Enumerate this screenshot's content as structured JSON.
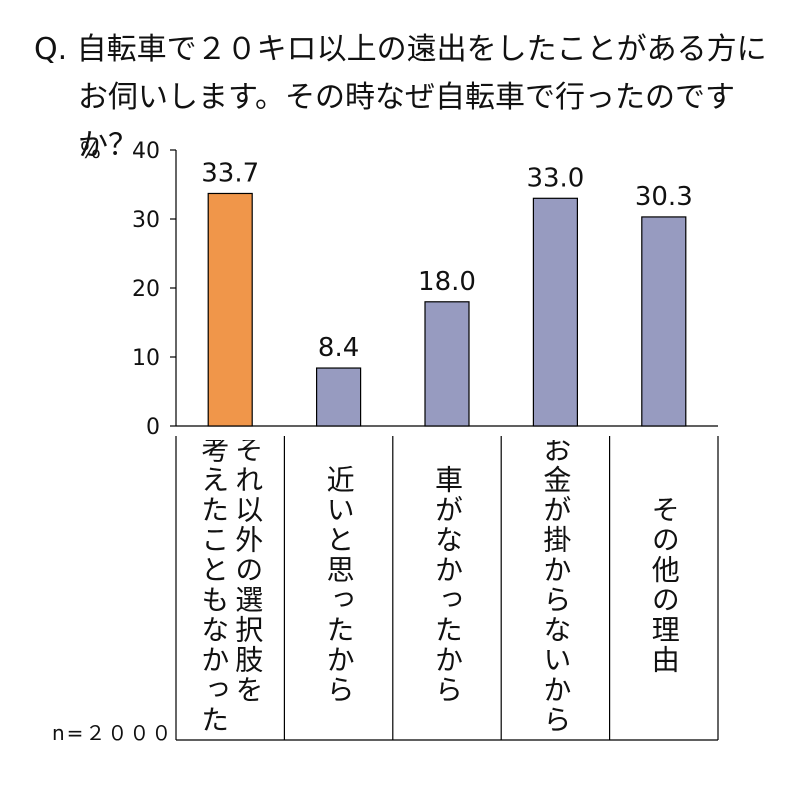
{
  "question": {
    "line1": "Q. 自転車で２０キロ以上の遠出をしたことがある方に",
    "line2": "お伺いします。その時なぜ自転車で行ったのですか？"
  },
  "sample_size": "n=２０００",
  "chart_data": {
    "type": "bar",
    "categories": [
      [
        "それ以外の選択肢を",
        "考えたこともなかった"
      ],
      [
        "近いと思ったから"
      ],
      [
        "車がなかったから"
      ],
      [
        "お金が掛からないから"
      ],
      [
        "その他の理由"
      ]
    ],
    "values": [
      33.7,
      8.4,
      18.0,
      33.0,
      30.3
    ],
    "value_labels": [
      "33.7",
      "8.4",
      "18.0",
      "33.0",
      "30.3"
    ],
    "ylabel": "%",
    "ylim": [
      0,
      40
    ],
    "yticks": [
      "0",
      "10",
      "20",
      "30",
      "40"
    ],
    "colors": [
      "#F0964A",
      "#979BC0",
      "#979BC0",
      "#979BC0",
      "#979BC0"
    ],
    "grid": false
  }
}
